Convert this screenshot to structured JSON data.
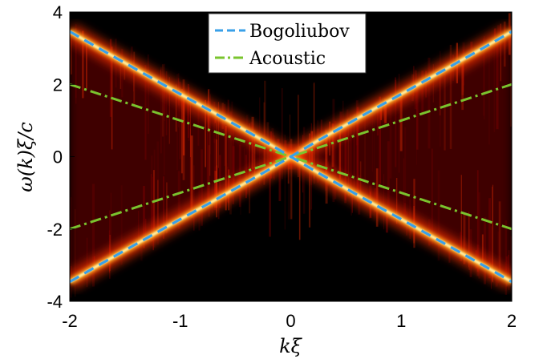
{
  "chart_data": {
    "type": "line",
    "xlabel": "kξ",
    "ylabel": "ω(k)ξ/c",
    "xlim": [
      -2,
      2
    ],
    "ylim": [
      -4,
      4
    ],
    "xticks": [
      -2,
      -1,
      0,
      1,
      2
    ],
    "yticks": [
      -4,
      -2,
      0,
      2,
      4
    ],
    "xtick_labels": [
      "-2",
      "-1",
      "0",
      "1",
      "2"
    ],
    "ytick_labels": [
      "-4",
      "-2",
      "0",
      "2",
      "4"
    ],
    "grid": false,
    "legend_position": "top-center",
    "background": "heatmap (dark red / black intensity map with bright yellow-white dispersion branches)",
    "series": [
      {
        "name": "Bogoliubov",
        "style": "dashed",
        "color": "#3aa0e8",
        "x": [
          -2,
          -1.75,
          -1.5,
          -1.25,
          -1,
          -0.75,
          -0.5,
          -0.25,
          0,
          0.25,
          0.5,
          0.75,
          1,
          1.25,
          1.5,
          1.75,
          2
        ],
        "y_upper": [
          3.46,
          3.02,
          2.59,
          2.16,
          1.73,
          1.31,
          0.88,
          0.45,
          0,
          0.45,
          0.88,
          1.31,
          1.73,
          2.16,
          2.59,
          3.02,
          3.46
        ],
        "y_lower": [
          -3.46,
          -3.02,
          -2.59,
          -2.16,
          -1.73,
          -1.31,
          -0.88,
          -0.45,
          0,
          -0.45,
          -0.88,
          -1.31,
          -1.73,
          -2.16,
          -2.59,
          -3.02,
          -3.46
        ]
      },
      {
        "name": "Acoustic",
        "style": "dash-dot",
        "color": "#7ac42e",
        "x": [
          -2,
          0,
          2
        ],
        "y_upper": [
          2,
          0,
          2
        ],
        "y_lower": [
          -2,
          0,
          -2
        ]
      }
    ],
    "colors": {
      "heat_dark": "#000000",
      "heat_mid": "#8c0000",
      "heat_bright": "#ff3000",
      "heat_peak": "#fff8b0"
    }
  }
}
